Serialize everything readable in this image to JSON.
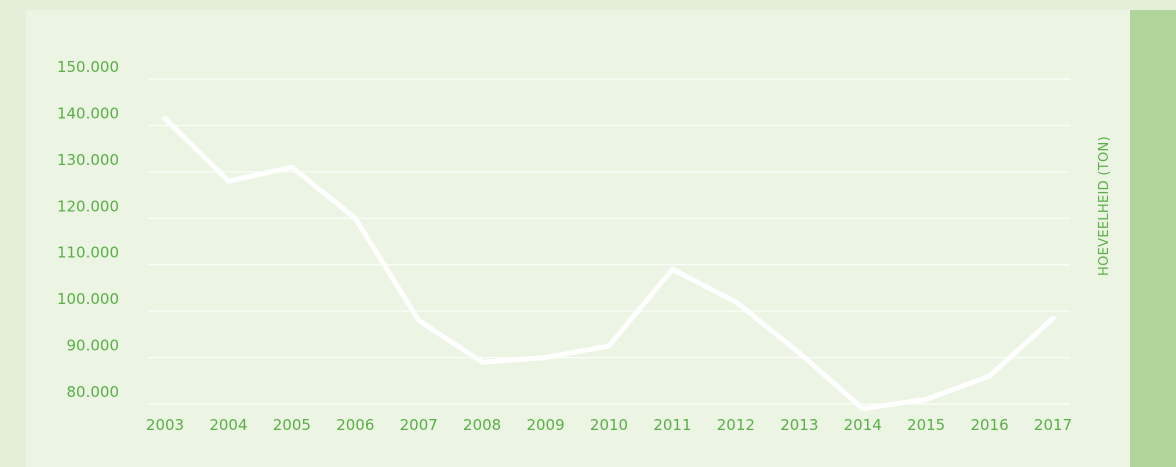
{
  "colors": {
    "background": "#e3efd8",
    "panel": "#ecf4e3",
    "side_bar": "#b0d49c",
    "text": "#58b046",
    "line": "#ffffff",
    "grid": "#ffffff"
  },
  "chart_data": {
    "type": "line",
    "title": "",
    "xlabel": "",
    "ylabel": "HOEVEELHEID (TON)",
    "ylim": [
      80000,
      150000
    ],
    "y_ticks": [
      80000,
      90000,
      100000,
      110000,
      120000,
      130000,
      140000,
      150000
    ],
    "y_tick_labels": [
      "80.000",
      "90.000",
      "100.000",
      "110.000",
      "120.000",
      "130.000",
      "140.000",
      "150.000"
    ],
    "grid": true,
    "categories": [
      "2003",
      "2004",
      "2005",
      "2006",
      "2007",
      "2008",
      "2009",
      "2010",
      "2011",
      "2012",
      "2013",
      "2014",
      "2015",
      "2016",
      "2017"
    ],
    "series": [
      {
        "values": [
          141500,
          128000,
          131000,
          120000,
          98000,
          89000,
          90000,
          92500,
          109000,
          102000,
          91000,
          79000,
          81000,
          86000,
          98500
        ]
      }
    ]
  }
}
